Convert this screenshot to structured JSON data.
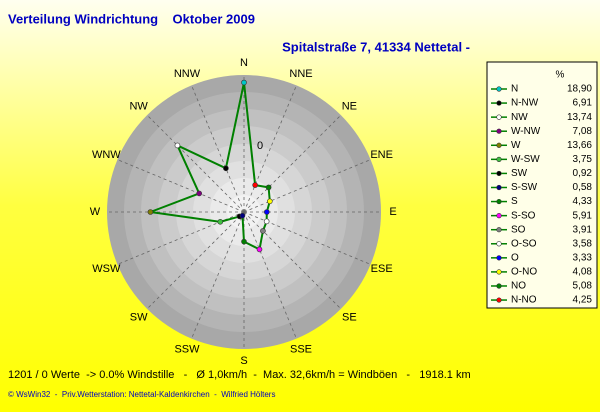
{
  "chart_data": {
    "type": "radar",
    "title": "Verteilung Windrichtung    Oktober 2009",
    "subtitle": "Spitalstraße 7, 41334 Nettetal -",
    "legend_header": "%",
    "categories": [
      "N",
      "N-NW",
      "NW",
      "W-NW",
      "W",
      "W-SW",
      "SW",
      "S-SW",
      "S",
      "S-SO",
      "SO",
      "O-SO",
      "O",
      "O-NO",
      "NO",
      "N-NO"
    ],
    "values": [
      18.9,
      6.91,
      13.74,
      7.08,
      13.66,
      3.75,
      0.92,
      0.58,
      4.33,
      5.91,
      3.91,
      3.58,
      3.33,
      4.08,
      5.08,
      4.25
    ],
    "value_labels": [
      "18,90",
      "6,91",
      "13,74",
      "7,08",
      "13,66",
      "3,75",
      "0,92",
      "0,58",
      "4,33",
      "5,91",
      "3,91",
      "3,58",
      "3,33",
      "4,08",
      "5,08",
      "4,25"
    ],
    "colors": [
      "#00c8c8",
      "#000000",
      "#ffffff",
      "#800080",
      "#808000",
      "#40c040",
      "#000000",
      "#000080",
      "#008000",
      "#ff00ff",
      "#808080",
      "#ffffff",
      "#0000ff",
      "#ffff00",
      "#008000",
      "#ff0000"
    ],
    "line_color": "#008000",
    "compass_labels": [
      "N",
      "NNE",
      "NE",
      "ENE",
      "E",
      "ESE",
      "SE",
      "SSE",
      "S",
      "SSW",
      "SW",
      "WSW",
      "W",
      "WNW",
      "NW",
      "NNW"
    ],
    "rlim": [
      0,
      20
    ],
    "scale_label": "0",
    "footer": "1201 / 0 Werte  -> 0.0% Windstille   -   Ø 1,0km/h  -  Max. 32,6km/h = Windböen   -   1918.1 km",
    "credit": "© WsWin32  -  Priv.Wetterstation: Nettetal-Kaldenkirchen  -  Wilfried Hölters"
  }
}
